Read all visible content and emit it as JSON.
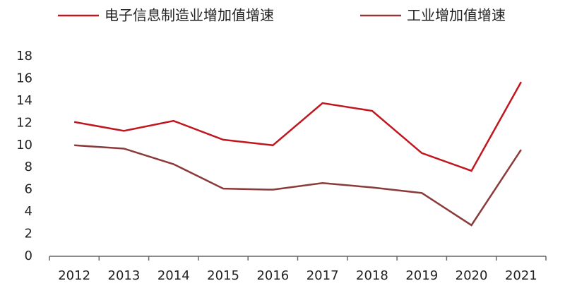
{
  "chart_data": {
    "type": "line",
    "categories": [
      "2012",
      "2013",
      "2014",
      "2015",
      "2016",
      "2017",
      "2018",
      "2019",
      "2020",
      "2021"
    ],
    "series": [
      {
        "name": "电子信息制造业增加值增速",
        "color": "#c0161d",
        "values": [
          12.1,
          11.3,
          12.2,
          10.5,
          10.0,
          13.8,
          13.1,
          9.3,
          7.7,
          15.7
        ]
      },
      {
        "name": "工业增加值增速",
        "color": "#8b3a3a",
        "values": [
          10.0,
          9.7,
          8.3,
          6.1,
          6.0,
          6.6,
          6.2,
          5.7,
          2.8,
          9.6
        ]
      }
    ],
    "ylim": [
      0,
      18
    ],
    "yticks": [
      0,
      2,
      4,
      6,
      8,
      10,
      12,
      14,
      16,
      18
    ],
    "grid": false
  }
}
